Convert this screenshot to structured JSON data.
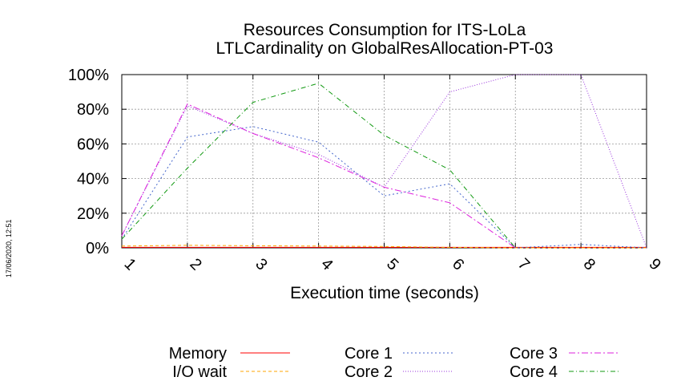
{
  "timestamp": "17/06/2020, 12:51",
  "chart_data": {
    "type": "line",
    "title": [
      "Resources Consumption for ITS-LoLa",
      "LTLCardinality on GlobalResAllocation-PT-03"
    ],
    "xlabel": "Execution time (seconds)",
    "ylabel": "",
    "x": [
      1,
      2,
      3,
      4,
      5,
      6,
      7,
      8,
      9
    ],
    "xticks": [
      "1",
      "2",
      "3",
      "4",
      "5",
      "6",
      "7",
      "8",
      "9"
    ],
    "xlim": [
      1,
      9
    ],
    "ylim": [
      0,
      100
    ],
    "yticks": [
      "0%",
      "20%",
      "40%",
      "60%",
      "80%",
      "100%"
    ],
    "ytick_values": [
      0,
      20,
      40,
      60,
      80,
      100
    ],
    "grid": true,
    "legend_position": "bottom",
    "series": [
      {
        "name": "Memory",
        "color": "#ff0000",
        "dash": "",
        "values": [
          0.3,
          0.3,
          0.3,
          0.3,
          0.3,
          0.3,
          0.3,
          0.3,
          0.3
        ]
      },
      {
        "name": "I/O wait",
        "color": "#ffa500",
        "dash": "4,3",
        "values": [
          1,
          1.5,
          1.2,
          1,
          0.8,
          0.3,
          0,
          0,
          0
        ]
      },
      {
        "name": "Core 1",
        "color": "#4466cc",
        "dash": "2,3",
        "values": [
          5,
          64,
          70,
          61,
          30,
          37,
          0,
          2,
          0
        ]
      },
      {
        "name": "Core 2",
        "color": "#9933dd",
        "dash": "1,2",
        "values": [
          7,
          82,
          66,
          54,
          35,
          90,
          100,
          100,
          0
        ]
      },
      {
        "name": "Core 3",
        "color": "#dd22dd",
        "dash": "8,3,2,3",
        "values": [
          7,
          83,
          66,
          52,
          35,
          26,
          0,
          null,
          null
        ]
      },
      {
        "name": "Core 4",
        "color": "#119911",
        "dash": "6,3,1,3",
        "values": [
          5,
          46,
          84,
          95,
          65,
          45,
          0,
          null,
          null
        ]
      }
    ]
  }
}
